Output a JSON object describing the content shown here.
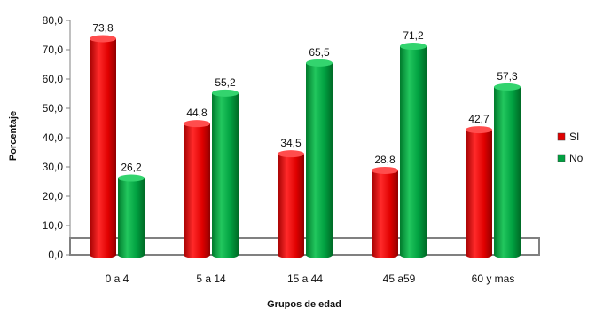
{
  "chart_data": {
    "type": "bar",
    "xlabel": "Grupos de edad",
    "ylabel": "Porcentaje",
    "ylim": [
      0,
      80
    ],
    "yticks": [
      "0,0",
      "10,0",
      "20,0",
      "30,0",
      "40,0",
      "50,0",
      "60,0",
      "70,0",
      "80,0"
    ],
    "categories": [
      "0 a 4",
      "5 a 14",
      "15 a 44",
      "45 a59",
      "60 y mas"
    ],
    "series": [
      {
        "name": "SI",
        "color": "#e00000",
        "values": [
          73.8,
          44.8,
          34.5,
          28.8,
          42.7
        ],
        "labels": [
          "73,8",
          "44,8",
          "34,5",
          "28,8",
          "42,7"
        ]
      },
      {
        "name": "No",
        "color": "#00a040",
        "values": [
          26.2,
          55.2,
          65.5,
          71.2,
          57.3
        ],
        "labels": [
          "26,2",
          "55,2",
          "65,5",
          "71,2",
          "57,3"
        ]
      }
    ],
    "legend_position": "right",
    "grid": false
  }
}
